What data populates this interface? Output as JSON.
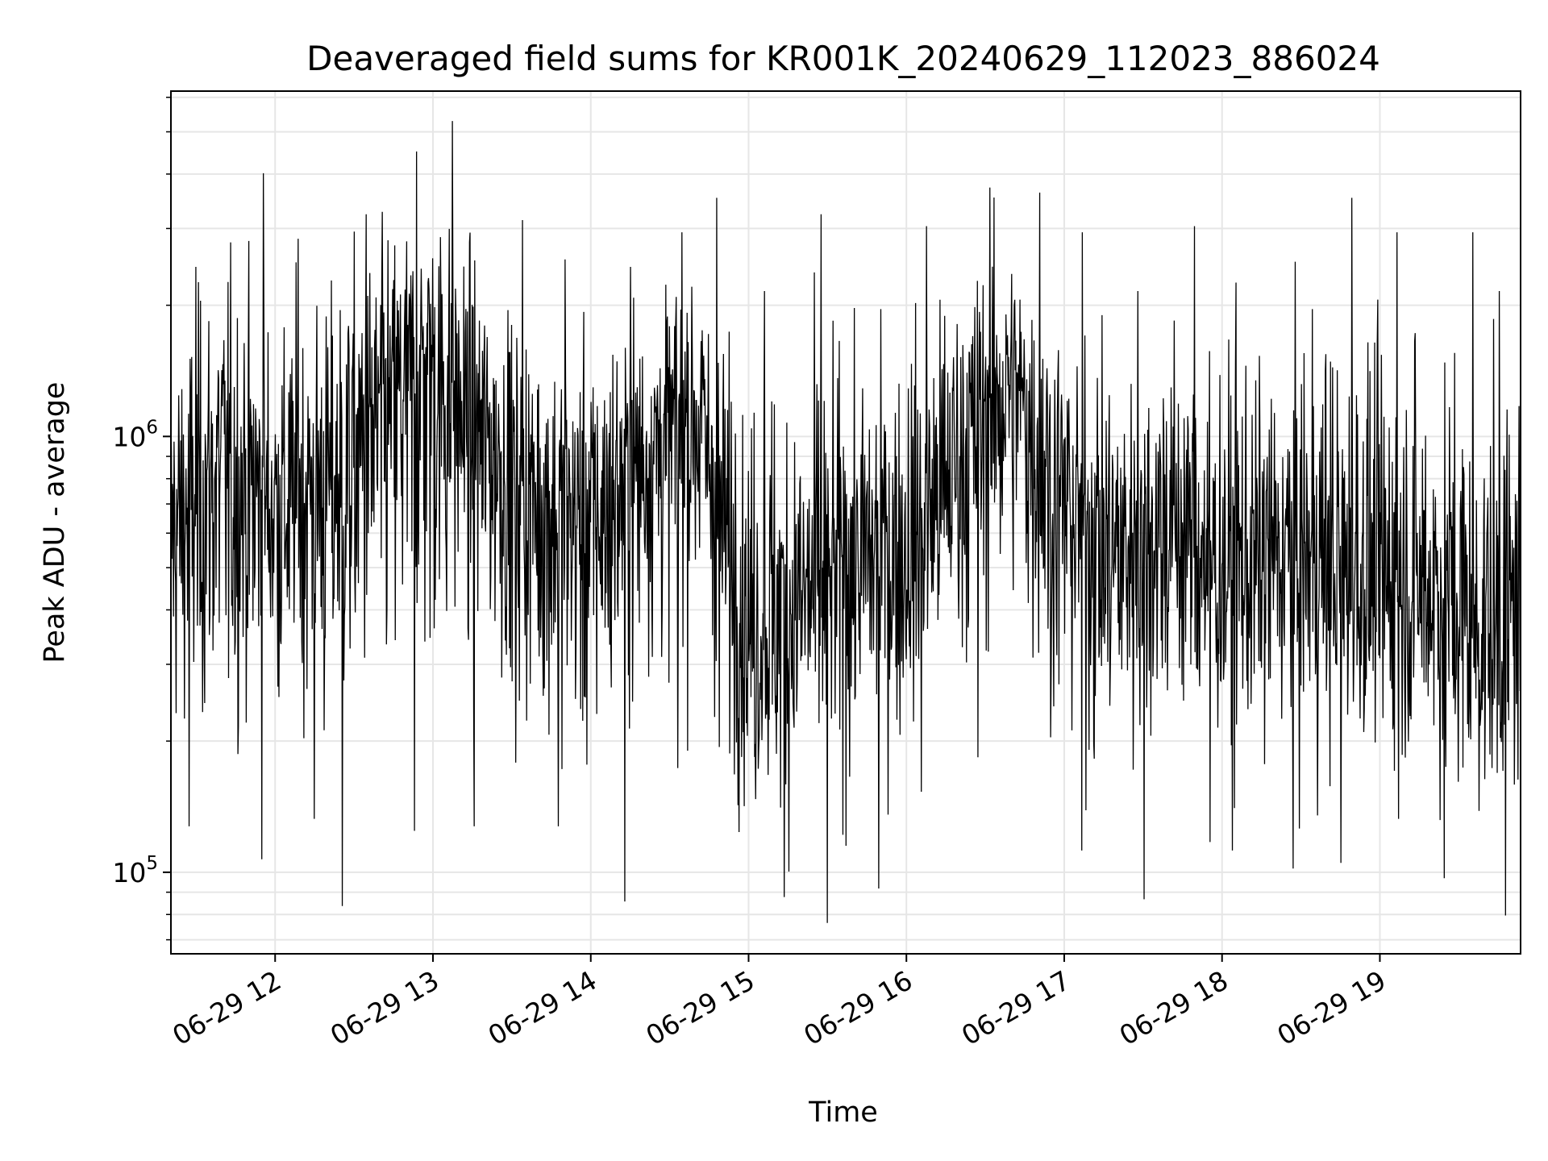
{
  "chart_data": {
    "type": "line",
    "title": "Deaveraged field sums for KR001K_20240629_112023_886024",
    "xlabel": "Time",
    "ylabel": "Peak ADU - average",
    "y_scale": "log",
    "ylim": [
      65000,
      6200000
    ],
    "xlim": [
      "2024-06-29 11:20:23",
      "2024-06-29 19:53:30"
    ],
    "x_ticks": [
      {
        "value": "2024-06-29 12:00",
        "label": "06-29 12"
      },
      {
        "value": "2024-06-29 13:00",
        "label": "06-29 13"
      },
      {
        "value": "2024-06-29 14:00",
        "label": "06-29 14"
      },
      {
        "value": "2024-06-29 15:00",
        "label": "06-29 15"
      },
      {
        "value": "2024-06-29 16:00",
        "label": "06-29 16"
      },
      {
        "value": "2024-06-29 17:00",
        "label": "06-29 17"
      },
      {
        "value": "2024-06-29 18:00",
        "label": "06-29 18"
      },
      {
        "value": "2024-06-29 19:00",
        "label": "06-29 19"
      }
    ],
    "y_ticks": [
      {
        "value": 100000,
        "base": "10",
        "exp": "5"
      },
      {
        "value": 1000000,
        "base": "10",
        "exp": "6"
      }
    ],
    "grid": true,
    "legend": "none",
    "series": [
      {
        "color": "#000000",
        "x": [
          "2024-06-29 11:20:23",
          "2024-06-29 11:40",
          "2024-06-29 12:00",
          "2024-06-29 12:20",
          "2024-06-29 12:40",
          "2024-06-29 13:00",
          "2024-06-29 13:20",
          "2024-06-29 13:40",
          "2024-06-29 14:00",
          "2024-06-29 14:20",
          "2024-06-29 14:40",
          "2024-06-29 15:00",
          "2024-06-29 15:20",
          "2024-06-29 15:40",
          "2024-06-29 16:00",
          "2024-06-29 16:20",
          "2024-06-29 16:40",
          "2024-06-29 17:00",
          "2024-06-29 17:20",
          "2024-06-29 17:40",
          "2024-06-29 18:00",
          "2024-06-29 18:20",
          "2024-06-29 18:40",
          "2024-06-29 19:00",
          "2024-06-29 19:20",
          "2024-06-29 19:40",
          "2024-06-29 19:53:30"
        ],
        "values": [
          600000,
          850000,
          700000,
          800000,
          1100000,
          1500000,
          1000000,
          700000,
          650000,
          900000,
          1200000,
          350000,
          400000,
          550000,
          500000,
          900000,
          1400000,
          700000,
          550000,
          650000,
          500000,
          550000,
          500000,
          450000,
          450000,
          350000,
          380000
        ],
        "min": [
          125000,
          105000,
          130000,
          82000,
          122000,
          125000,
          175000,
          125000,
          84000,
          170000,
          190000,
          86000,
          75000,
          90000,
          150000,
          180000,
          200000,
          110000,
          85000,
          115000,
          110000,
          100000,
          103000,
          130000,
          95000,
          78000,
          100000
        ],
        "max": [
          2500000,
          4100000,
          2900000,
          3300000,
          4600000,
          5400000,
          3200000,
          2600000,
          2500000,
          3000000,
          3600000,
          2200000,
          3300000,
          2000000,
          3100000,
          3800000,
          3700000,
          3000000,
          2200000,
          3100000,
          2300000,
          2000000,
          3600000,
          3000000,
          3000000,
          2200000,
          2600000
        ]
      }
    ]
  }
}
